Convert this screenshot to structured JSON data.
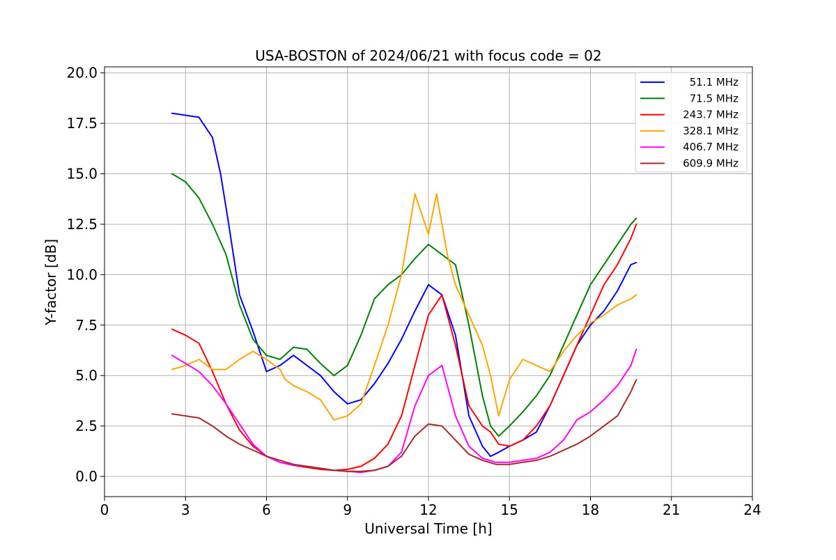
{
  "chart_data": {
    "type": "line",
    "title": "USA-BOSTON of 2024/06/21 with focus code = 02",
    "xlabel": "Universal Time [h]",
    "ylabel": "Y-factor [dB]",
    "xlim": [
      0,
      24
    ],
    "ylim": [
      -1.0,
      20.3
    ],
    "x_ticks": [
      0,
      3,
      6,
      9,
      12,
      15,
      18,
      21,
      24
    ],
    "x_tick_labels": [
      "0",
      "3",
      "6",
      "9",
      "12",
      "15",
      "18",
      "21",
      "24"
    ],
    "y_ticks": [
      0.0,
      2.5,
      5.0,
      7.5,
      10.0,
      12.5,
      15.0,
      17.5,
      20.0
    ],
    "y_tick_labels": [
      "0.0",
      "2.5",
      "5.0",
      "7.5",
      "10.0",
      "12.5",
      "15.0",
      "17.5",
      "20.0"
    ],
    "grid": true,
    "legend_position": "top-right",
    "series": [
      {
        "name": "51.1 MHz",
        "color": "#0000ff",
        "x": [
          2.5,
          3.0,
          3.5,
          4.0,
          4.3,
          4.6,
          5.0,
          5.5,
          6.0,
          6.5,
          7.0,
          7.5,
          8.0,
          8.5,
          9.0,
          9.5,
          10.0,
          10.5,
          11.0,
          11.5,
          12.0,
          12.5,
          13.0,
          13.5,
          14.0,
          14.3,
          14.6,
          15.0,
          15.5,
          16.0,
          16.5,
          17.0,
          17.5,
          18.0,
          18.5,
          19.0,
          19.5,
          19.7
        ],
        "y": [
          18.0,
          17.9,
          17.8,
          16.8,
          15.0,
          12.5,
          9.0,
          7.2,
          5.2,
          5.5,
          6.0,
          5.5,
          5.0,
          4.2,
          3.6,
          3.8,
          4.6,
          5.6,
          6.8,
          8.2,
          9.5,
          9.0,
          7.0,
          3.0,
          1.5,
          1.0,
          1.2,
          1.5,
          1.8,
          2.2,
          3.5,
          5.0,
          6.5,
          7.5,
          8.2,
          9.2,
          10.5,
          10.6
        ]
      },
      {
        "name": "71.5 MHz",
        "color": "#008000",
        "x": [
          2.5,
          3.0,
          3.5,
          4.0,
          4.5,
          5.0,
          5.5,
          6.0,
          6.5,
          7.0,
          7.5,
          8.0,
          8.5,
          9.0,
          9.5,
          10.0,
          10.5,
          11.0,
          11.5,
          12.0,
          12.5,
          13.0,
          13.5,
          14.0,
          14.3,
          14.6,
          15.0,
          15.5,
          16.0,
          16.5,
          17.0,
          17.5,
          18.0,
          18.5,
          19.0,
          19.5,
          19.7
        ],
        "y": [
          15.0,
          14.6,
          13.8,
          12.5,
          11.0,
          8.5,
          6.8,
          6.0,
          5.8,
          6.4,
          6.3,
          5.6,
          5.0,
          5.5,
          7.0,
          8.8,
          9.5,
          10.0,
          10.8,
          11.5,
          11.0,
          10.5,
          7.5,
          4.0,
          2.5,
          2.0,
          2.5,
          3.2,
          4.0,
          5.0,
          6.5,
          8.0,
          9.5,
          10.5,
          11.5,
          12.5,
          12.8
        ]
      },
      {
        "name": "243.7 MHz",
        "color": "#ff0000",
        "x": [
          2.5,
          3.0,
          3.5,
          4.0,
          4.5,
          5.0,
          5.5,
          6.0,
          6.5,
          7.0,
          7.5,
          8.0,
          8.5,
          9.0,
          9.5,
          10.0,
          10.5,
          11.0,
          11.5,
          12.0,
          12.5,
          13.0,
          13.5,
          14.0,
          14.3,
          14.6,
          15.0,
          15.5,
          16.0,
          16.5,
          17.0,
          17.5,
          18.0,
          18.5,
          19.0,
          19.5,
          19.7
        ],
        "y": [
          7.3,
          7.0,
          6.6,
          5.2,
          3.6,
          2.3,
          1.5,
          1.0,
          0.7,
          0.55,
          0.45,
          0.35,
          0.3,
          0.35,
          0.5,
          0.9,
          1.6,
          3.0,
          5.5,
          8.0,
          9.0,
          6.5,
          3.5,
          2.5,
          2.2,
          1.6,
          1.5,
          1.8,
          2.5,
          3.5,
          5.0,
          6.5,
          8.0,
          9.5,
          10.5,
          11.8,
          12.5
        ]
      },
      {
        "name": "328.1 MHz",
        "color": "#ffa500",
        "x": [
          2.5,
          3.0,
          3.5,
          4.0,
          4.5,
          5.0,
          5.5,
          6.0,
          6.3,
          6.5,
          6.7,
          7.0,
          7.5,
          8.0,
          8.5,
          9.0,
          9.5,
          10.0,
          10.5,
          11.0,
          11.5,
          12.0,
          12.3,
          12.7,
          13.0,
          13.5,
          14.0,
          14.3,
          14.6,
          15.0,
          15.5,
          16.0,
          16.5,
          17.0,
          17.5,
          18.0,
          18.5,
          19.0,
          19.5,
          19.7
        ],
        "y": [
          5.3,
          5.5,
          5.8,
          5.3,
          5.3,
          5.8,
          6.2,
          5.8,
          5.5,
          5.3,
          4.8,
          4.5,
          4.2,
          3.8,
          2.8,
          3.0,
          3.6,
          5.5,
          7.5,
          10.0,
          14.0,
          12.0,
          14.0,
          11.0,
          9.5,
          8.0,
          6.5,
          5.0,
          3.0,
          4.8,
          5.8,
          5.5,
          5.2,
          6.2,
          7.0,
          7.6,
          8.0,
          8.5,
          8.8,
          9.0
        ]
      },
      {
        "name": "406.7 MHz",
        "color": "#ff00ff",
        "x": [
          2.5,
          3.0,
          3.5,
          4.0,
          4.5,
          5.0,
          5.5,
          6.0,
          6.5,
          7.0,
          7.5,
          8.0,
          8.5,
          9.0,
          9.5,
          10.0,
          10.5,
          11.0,
          11.5,
          12.0,
          12.5,
          13.0,
          13.5,
          14.0,
          14.5,
          15.0,
          15.5,
          16.0,
          16.5,
          17.0,
          17.5,
          18.0,
          18.5,
          19.0,
          19.5,
          19.7
        ],
        "y": [
          6.0,
          5.6,
          5.2,
          4.5,
          3.6,
          2.6,
          1.6,
          1.0,
          0.7,
          0.55,
          0.5,
          0.4,
          0.3,
          0.25,
          0.2,
          0.3,
          0.5,
          1.2,
          3.5,
          5.0,
          5.5,
          3.0,
          1.5,
          0.9,
          0.7,
          0.7,
          0.8,
          0.9,
          1.2,
          1.8,
          2.8,
          3.2,
          3.8,
          4.5,
          5.5,
          6.3
        ]
      },
      {
        "name": "609.9 MHz",
        "color": "#a52a2a",
        "x": [
          2.5,
          3.0,
          3.5,
          4.0,
          4.5,
          5.0,
          5.5,
          6.0,
          6.5,
          7.0,
          7.5,
          8.0,
          8.5,
          9.0,
          9.5,
          10.0,
          10.5,
          11.0,
          11.5,
          12.0,
          12.5,
          13.0,
          13.5,
          14.0,
          14.5,
          15.0,
          15.5,
          16.0,
          16.5,
          17.0,
          17.5,
          18.0,
          18.5,
          19.0,
          19.5,
          19.7
        ],
        "y": [
          3.1,
          3.0,
          2.9,
          2.5,
          2.0,
          1.6,
          1.3,
          1.0,
          0.8,
          0.6,
          0.5,
          0.4,
          0.3,
          0.25,
          0.25,
          0.3,
          0.5,
          1.0,
          2.0,
          2.6,
          2.5,
          1.8,
          1.1,
          0.8,
          0.6,
          0.6,
          0.7,
          0.8,
          1.0,
          1.3,
          1.6,
          2.0,
          2.5,
          3.0,
          4.2,
          4.8
        ]
      }
    ]
  }
}
